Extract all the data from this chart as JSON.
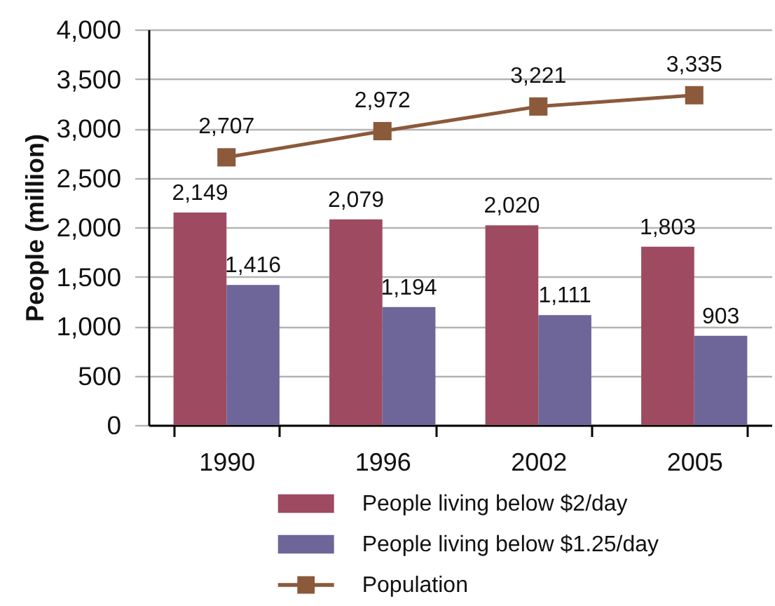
{
  "chart_data": {
    "type": "bar",
    "ylabel": "People (million)",
    "categories": [
      "1990",
      "1996",
      "2002",
      "2005"
    ],
    "series": [
      {
        "name": "People living below $2/day",
        "color": "#9e4a60",
        "values": [
          2149,
          2079,
          2020,
          1803
        ],
        "value_labels": [
          "2,149",
          "2,079",
          "2,020",
          "1,803"
        ]
      },
      {
        "name": "People living below $1.25/day",
        "color": "#6e6699",
        "values": [
          1416,
          1194,
          1111,
          903
        ],
        "value_labels": [
          "1,416",
          "1,194",
          "1,111",
          "903"
        ]
      },
      {
        "name": "Population",
        "type": "line",
        "marker": "square",
        "color": "#8b5a3a",
        "values": [
          2707,
          2972,
          3221,
          3335
        ],
        "value_labels": [
          "2,707",
          "2,972",
          "3,221",
          "3,335"
        ]
      }
    ],
    "ylim": [
      0,
      4000
    ],
    "yticks": [
      0,
      500,
      {
        "value": 1000,
        "label": "1,000"
      },
      {
        "value": 1500,
        "label": "1,500"
      },
      {
        "value": 2000,
        "label": "2,000"
      },
      {
        "value": 2500,
        "label": "2,500"
      },
      {
        "value": 3000,
        "label": "3,000"
      },
      {
        "value": 3500,
        "label": "3,500"
      },
      {
        "value": 4000,
        "label": "4,000"
      }
    ],
    "grid": "y",
    "legend": "bottom"
  }
}
